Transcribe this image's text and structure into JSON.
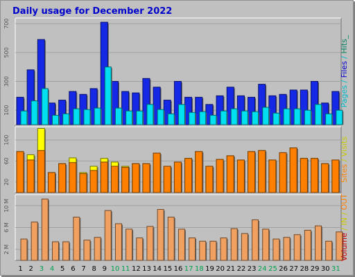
{
  "chart_data": {
    "type": "bar",
    "title": "Daily usage for December 2022",
    "title_color": "#0000cc",
    "background": "#c0c0c0",
    "weekend_days": [
      3,
      4,
      10,
      11,
      17,
      18,
      24,
      25,
      31
    ],
    "weekend_color": "#00a050",
    "weekday_color": "#000000",
    "days": [
      "1",
      "2",
      "3",
      "4",
      "5",
      "6",
      "7",
      "8",
      "9",
      "10",
      "11",
      "12",
      "13",
      "14",
      "15",
      "16",
      "17",
      "18",
      "19",
      "20",
      "21",
      "22",
      "23",
      "24",
      "25",
      "26",
      "27",
      "28",
      "29",
      "30",
      "31"
    ],
    "panels": [
      {
        "id": "hits-files-pages",
        "ylim": [
          0,
          720
        ],
        "yticks": [
          100,
          300,
          500,
          700
        ],
        "ytick_labels": [
          "100",
          "300",
          "500",
          "700"
        ],
        "right_label_parts": [
          {
            "text": "Pages",
            "color": "#00b8c8"
          },
          {
            "text": " / ",
            "color": "#00b8c8"
          },
          {
            "text": "Files",
            "color": "#0000cc"
          },
          {
            "text": " / ",
            "color": "#00b8c8"
          },
          {
            "text": "Hits",
            "color": "#008060"
          },
          {
            "text": "_",
            "color": "#008060"
          }
        ],
        "series": [
          {
            "name": "Hits",
            "color": "#1428e6",
            "values": [
              190,
              380,
              590,
              150,
              170,
              230,
              210,
              250,
              710,
              300,
              230,
              220,
              320,
              260,
              170,
              300,
              190,
              190,
              140,
              200,
              260,
              200,
              190,
              280,
              200,
              210,
              240,
              240,
              300,
              150,
              230
            ]
          },
          {
            "name": "Files",
            "color": "#1428e6",
            "values": [
              185,
              370,
              580,
              145,
              165,
              225,
              205,
              245,
              700,
              295,
              225,
              215,
              315,
              255,
              165,
              295,
              185,
              185,
              135,
              195,
              255,
              195,
              185,
              275,
              195,
              205,
              235,
              235,
              295,
              145,
              225
            ]
          },
          {
            "name": "Pages",
            "color": "#00e0f0",
            "values": [
              95,
              165,
              250,
              65,
              75,
              110,
              105,
              115,
              400,
              115,
              95,
              95,
              140,
              105,
              75,
              140,
              85,
              90,
              65,
              95,
              110,
              95,
              90,
              120,
              80,
              110,
              110,
              100,
              140,
              75,
              100
            ]
          }
        ]
      },
      {
        "id": "sites-visits",
        "ylim": [
          0,
          120
        ],
        "yticks": [
          20,
          60,
          100
        ],
        "ytick_labels": [
          "20",
          "60",
          "100"
        ],
        "right_label_parts": [
          {
            "text": "Sites",
            "color": "#ff8000"
          },
          {
            "text": " / ",
            "color": "#c8c800"
          },
          {
            "text": "Visits",
            "color": "#c8c800"
          }
        ],
        "series": [
          {
            "name": "Visits",
            "color": "#ffff00",
            "values": [
              78,
              72,
              122,
              38,
              55,
              66,
              38,
              50,
              65,
              58,
              50,
              55,
              55,
              75,
              50,
              58,
              65,
              78,
              50,
              63,
              70,
              62,
              78,
              80,
              62,
              68,
              85,
              65,
              65,
              55,
              62
            ]
          },
          {
            "name": "Sites",
            "color": "#ff8000",
            "values": [
              78,
              62,
              80,
              38,
              55,
              57,
              36,
              42,
              58,
              50,
              48,
              55,
              55,
              75,
              50,
              58,
              65,
              78,
              50,
              63,
              70,
              62,
              78,
              80,
              62,
              76,
              85,
              65,
              65,
              55,
              62
            ]
          }
        ]
      },
      {
        "id": "kbytes-in-out",
        "ylim": [
          0,
          11.5
        ],
        "yticks": [
          2,
          6,
          10
        ],
        "ytick_labels": [
          "2 M",
          "6 M",
          "10 M"
        ],
        "right_label_parts": [
          {
            "text": "Volume",
            "color": "#cc0000"
          },
          {
            "text": " / ",
            "color": "#c8c800"
          },
          {
            "text": "IN",
            "color": "#c8c800"
          },
          {
            "text": " / ",
            "color": "#c8c800"
          },
          {
            "text": "OUT",
            "color": "#ff8000"
          }
        ],
        "series": [
          {
            "name": "Volume",
            "color": "#e03030",
            "values": [
              4.0,
              7.2,
              11.4,
              3.5,
              3.5,
              8.0,
              4.2,
              4.3,
              9.3,
              6.8,
              5.8,
              4.2,
              6.4,
              9.5,
              8.1,
              5.8,
              4.2,
              3.6,
              3.6,
              4.2,
              5.9,
              5.0,
              7.5,
              5.8,
              4.0,
              4.3,
              4.8,
              5.6,
              6.4,
              3.6,
              5.3
            ]
          },
          {
            "name": "IN",
            "color": "#e03030",
            "values": [
              4.0,
              7.2,
              11.4,
              3.5,
              3.5,
              8.0,
              4.2,
              4.3,
              9.3,
              6.8,
              5.8,
              4.2,
              6.4,
              9.5,
              8.1,
              5.8,
              4.2,
              3.6,
              3.6,
              4.2,
              5.9,
              5.0,
              7.5,
              5.8,
              4.0,
              4.3,
              4.8,
              5.6,
              6.4,
              3.6,
              5.3
            ]
          },
          {
            "name": "OUT",
            "color": "#f0a060",
            "values": [
              3.9,
              7.0,
              11.2,
              3.4,
              3.4,
              7.9,
              3.7,
              4.2,
              9.1,
              6.7,
              5.7,
              4.1,
              6.2,
              9.3,
              7.9,
              5.7,
              4.1,
              3.5,
              3.5,
              4.1,
              5.8,
              4.9,
              7.4,
              5.7,
              3.9,
              4.2,
              4.7,
              5.5,
              6.3,
              3.5,
              5.2
            ]
          }
        ]
      }
    ]
  }
}
